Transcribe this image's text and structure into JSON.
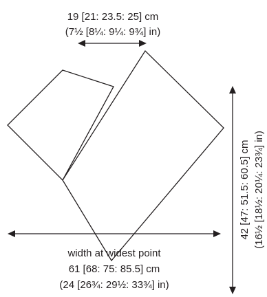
{
  "top_dimension": {
    "line1": "19 [21: 23.5: 25] cm",
    "line2": "(7½ [8¼: 9¼: 9¾] in)"
  },
  "side_dimension": {
    "line1": "42 [47: 51.5: 60.5] cm",
    "line2": "(16½ [18½: 20¼: 23¾] in)"
  },
  "bottom_dimension": {
    "line1": "width at widest point",
    "line2": "61 [68: 75: 85.5] cm",
    "line3": "(24 [26¾: 29½: 33¾] in)"
  },
  "colors": {
    "line": "#231f20",
    "background": "#ffffff"
  }
}
